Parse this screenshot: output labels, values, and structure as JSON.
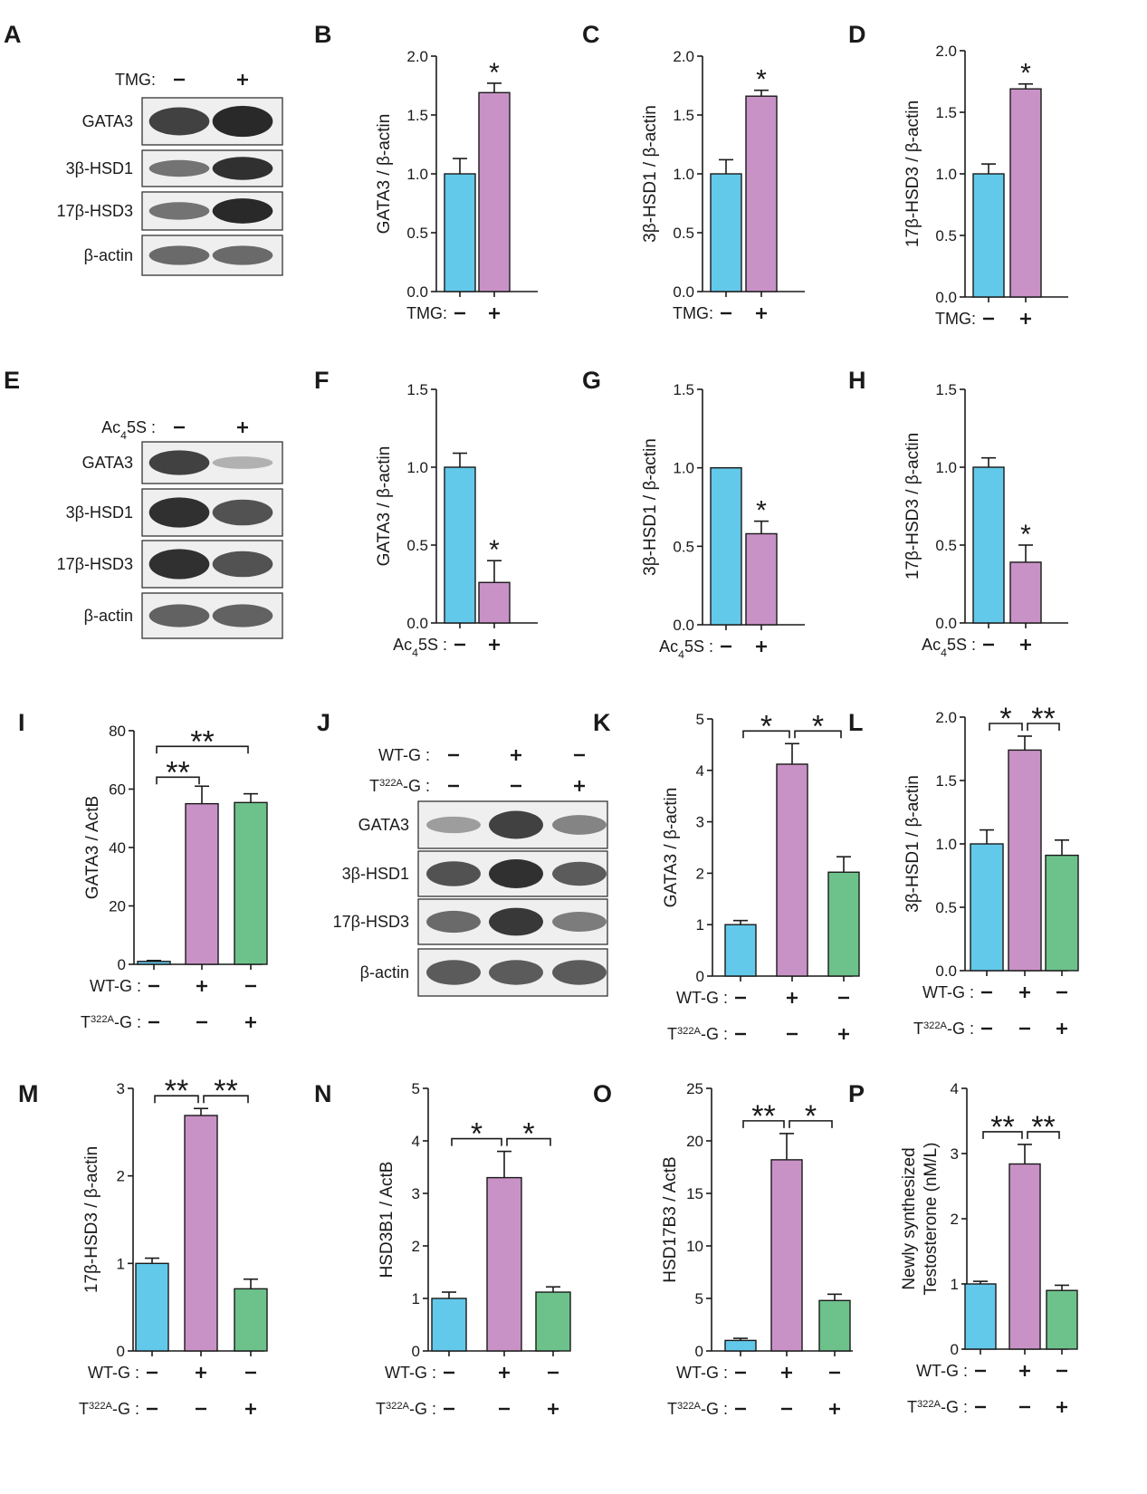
{
  "colors": {
    "cyan": "#63c9ea",
    "pink": "#c992c6",
    "green": "#6dc28b",
    "axis": "#1a1a1a",
    "blot_band": "#1d1d1d"
  },
  "blots": [
    {
      "letter": "A",
      "cond_labels": [
        {
          "text": "TMG:"
        }
      ],
      "cond_signs": [
        [
          "−",
          "+"
        ]
      ],
      "bands": [
        {
          "label": "GATA3",
          "intensity": [
            0.85,
            1.0
          ]
        },
        {
          "label": "3β-HSD1",
          "intensity": [
            0.55,
            0.95
          ]
        },
        {
          "label": "17β-HSD3",
          "intensity": [
            0.55,
            1.0
          ]
        },
        {
          "label": "β-actin",
          "intensity": [
            0.6,
            0.6
          ]
        }
      ]
    },
    {
      "letter": "E",
      "cond_labels": [
        {
          "text": "Ac",
          "sub": "4",
          "rest": "5S :"
        }
      ],
      "cond_signs": [
        [
          "−",
          "+"
        ]
      ],
      "bands": [
        {
          "label": "GATA3",
          "intensity": [
            0.85,
            0.18
          ]
        },
        {
          "label": "3β-HSD1",
          "intensity": [
            0.95,
            0.75
          ]
        },
        {
          "label": "17β-HSD3",
          "intensity": [
            0.95,
            0.75
          ]
        },
        {
          "label": "β-actin",
          "intensity": [
            0.65,
            0.65
          ]
        }
      ]
    },
    {
      "letter": "J",
      "cond_labels": [
        {
          "text": "WT-G :"
        },
        {
          "text": "T",
          "sup": "322A",
          "rest": "-G :"
        }
      ],
      "cond_signs": [
        [
          "−",
          "+",
          "−"
        ],
        [
          "−",
          "−",
          "+"
        ]
      ],
      "bands": [
        {
          "label": "GATA3",
          "intensity": [
            0.3,
            0.85,
            0.45
          ]
        },
        {
          "label": "3β-HSD1",
          "intensity": [
            0.75,
            0.95,
            0.7
          ]
        },
        {
          "label": "17β-HSD3",
          "intensity": [
            0.6,
            0.9,
            0.5
          ]
        },
        {
          "label": "β-actin",
          "intensity": [
            0.7,
            0.7,
            0.7
          ]
        }
      ]
    }
  ],
  "chart_data": [
    {
      "letter": "B",
      "type": "bar",
      "ylabel": "GATA3 / β-actin",
      "ylim": [
        0,
        2
      ],
      "yticks": [
        "0.0",
        "0.5",
        "1.0",
        "1.5",
        "2.0"
      ],
      "cond_labels": [
        {
          "text": "TMG:"
        }
      ],
      "cond_signs": [
        [
          "−",
          "+"
        ]
      ],
      "values": [
        1.0,
        1.69
      ],
      "errors": [
        0.13,
        0.08
      ],
      "bar_colors": [
        "cyan",
        "pink"
      ],
      "marks": [
        {
          "on": 1,
          "text": "*"
        }
      ],
      "brackets": []
    },
    {
      "letter": "C",
      "type": "bar",
      "ylabel": "3β-HSD1 / β-actin",
      "ylim": [
        0,
        2
      ],
      "yticks": [
        "0.0",
        "0.5",
        "1.0",
        "1.5",
        "2.0"
      ],
      "cond_labels": [
        {
          "text": "TMG:"
        }
      ],
      "cond_signs": [
        [
          "−",
          "+"
        ]
      ],
      "values": [
        1.0,
        1.66
      ],
      "errors": [
        0.12,
        0.05
      ],
      "bar_colors": [
        "cyan",
        "pink"
      ],
      "marks": [
        {
          "on": 1,
          "text": "*"
        }
      ],
      "brackets": []
    },
    {
      "letter": "D",
      "type": "bar",
      "ylabel": "17β-HSD3 / β-actin",
      "ylim": [
        0,
        2
      ],
      "yticks": [
        "0.0",
        "0.5",
        "1.0",
        "1.5",
        "2.0"
      ],
      "cond_labels": [
        {
          "text": "TMG:"
        }
      ],
      "cond_signs": [
        [
          "−",
          "+"
        ]
      ],
      "values": [
        1.0,
        1.69
      ],
      "errors": [
        0.08,
        0.04
      ],
      "bar_colors": [
        "cyan",
        "pink"
      ],
      "marks": [
        {
          "on": 1,
          "text": "*"
        }
      ],
      "brackets": []
    },
    {
      "letter": "F",
      "type": "bar",
      "ylabel": "GATA3 / β-actin",
      "ylim": [
        0,
        1.5
      ],
      "yticks": [
        "0.0",
        "0.5",
        "1.0",
        "1.5"
      ],
      "cond_labels": [
        {
          "text": "Ac",
          "sub": "4",
          "rest": "5S :"
        }
      ],
      "cond_signs": [
        [
          "−",
          "+"
        ]
      ],
      "values": [
        1.0,
        0.26
      ],
      "errors": [
        0.09,
        0.14
      ],
      "bar_colors": [
        "cyan",
        "pink"
      ],
      "marks": [
        {
          "on": 1,
          "text": "*"
        }
      ],
      "brackets": []
    },
    {
      "letter": "G",
      "type": "bar",
      "ylabel": "3β-HSD1 / β-actin",
      "ylim": [
        0,
        1.5
      ],
      "yticks": [
        "0.0",
        "0.5",
        "1.0",
        "1.5"
      ],
      "cond_labels": [
        {
          "text": "Ac",
          "sub": "4",
          "rest": "5S :"
        }
      ],
      "cond_signs": [
        [
          "−",
          "+"
        ]
      ],
      "values": [
        1.0,
        0.58
      ],
      "errors": [
        0.0,
        0.08
      ],
      "bar_colors": [
        "cyan",
        "pink"
      ],
      "marks": [
        {
          "on": 1,
          "text": "*"
        }
      ],
      "brackets": []
    },
    {
      "letter": "H",
      "type": "bar",
      "ylabel": "17β-HSD3 / β-actin",
      "ylim": [
        0,
        1.5
      ],
      "yticks": [
        "0.0",
        "0.5",
        "1.0",
        "1.5"
      ],
      "cond_labels": [
        {
          "text": "Ac",
          "sub": "4",
          "rest": "5S :"
        }
      ],
      "cond_signs": [
        [
          "−",
          "+"
        ]
      ],
      "values": [
        1.0,
        0.39
      ],
      "errors": [
        0.06,
        0.11
      ],
      "bar_colors": [
        "cyan",
        "pink"
      ],
      "marks": [
        {
          "on": 1,
          "text": "*"
        }
      ],
      "brackets": []
    },
    {
      "letter": "I",
      "type": "bar",
      "ylabel": "GATA3 / ActB",
      "ylim": [
        0,
        80
      ],
      "yticks": [
        "0",
        "20",
        "40",
        "60",
        "80"
      ],
      "cond_labels": [
        {
          "text": "WT-G :"
        },
        {
          "text": "T",
          "sup": "322A",
          "rest": "-G :"
        }
      ],
      "cond_signs": [
        [
          "−",
          "+",
          "−"
        ],
        [
          "−",
          "−",
          "+"
        ]
      ],
      "values": [
        1.0,
        55.0,
        55.4
      ],
      "errors": [
        0.3,
        6.0,
        3.0
      ],
      "bar_colors": [
        "cyan",
        "pink",
        "green"
      ],
      "marks": [],
      "brackets": [
        {
          "from": 0,
          "to": 1,
          "level": 0,
          "text": "**"
        },
        {
          "from": 0,
          "to": 2,
          "level": 1,
          "text": "**"
        }
      ]
    },
    {
      "letter": "K",
      "type": "bar",
      "ylabel": "GATA3 / β-actin",
      "ylim": [
        0,
        5
      ],
      "yticks": [
        "0",
        "1",
        "2",
        "3",
        "4",
        "5"
      ],
      "cond_labels": [
        {
          "text": "WT-G :"
        },
        {
          "text": "T",
          "sup": "322A",
          "rest": "-G :"
        }
      ],
      "cond_signs": [
        [
          "−",
          "+",
          "−"
        ],
        [
          "−",
          "−",
          "+"
        ]
      ],
      "values": [
        1.0,
        4.12,
        2.02
      ],
      "errors": [
        0.08,
        0.4,
        0.3
      ],
      "bar_colors": [
        "cyan",
        "pink",
        "green"
      ],
      "marks": [],
      "brackets": [
        {
          "from": 0,
          "to": 1,
          "level": 0,
          "text": "*"
        },
        {
          "from": 1,
          "to": 2,
          "level": 0,
          "text": "*"
        }
      ]
    },
    {
      "letter": "L",
      "type": "bar",
      "ylabel": "3β-HSD1 / β-actin",
      "ylim": [
        0,
        2
      ],
      "yticks": [
        "0.0",
        "0.5",
        "1.0",
        "1.5",
        "2.0"
      ],
      "cond_labels": [
        {
          "text": "WT-G :"
        },
        {
          "text": "T",
          "sup": "322A",
          "rest": "-G :"
        }
      ],
      "cond_signs": [
        [
          "−",
          "+",
          "−"
        ],
        [
          "−",
          "−",
          "+"
        ]
      ],
      "values": [
        1.0,
        1.74,
        0.91
      ],
      "errors": [
        0.11,
        0.11,
        0.12
      ],
      "bar_colors": [
        "cyan",
        "pink",
        "green"
      ],
      "marks": [],
      "brackets": [
        {
          "from": 0,
          "to": 1,
          "level": 0,
          "text": "*"
        },
        {
          "from": 1,
          "to": 2,
          "level": 0,
          "text": "**"
        }
      ]
    },
    {
      "letter": "M",
      "type": "bar",
      "ylabel": "17β-HSD3 / β-actin",
      "ylim": [
        0,
        3
      ],
      "yticks": [
        "0",
        "1",
        "2",
        "3"
      ],
      "cond_labels": [
        {
          "text": "WT-G :"
        },
        {
          "text": "T",
          "sup": "322A",
          "rest": "-G :"
        }
      ],
      "cond_signs": [
        [
          "−",
          "+",
          "−"
        ],
        [
          "−",
          "−",
          "+"
        ]
      ],
      "values": [
        1.0,
        2.69,
        0.71
      ],
      "errors": [
        0.06,
        0.08,
        0.11
      ],
      "bar_colors": [
        "cyan",
        "pink",
        "green"
      ],
      "marks": [],
      "brackets": [
        {
          "from": 0,
          "to": 1,
          "level": 0,
          "text": "**"
        },
        {
          "from": 1,
          "to": 2,
          "level": 0,
          "text": "**"
        }
      ]
    },
    {
      "letter": "N",
      "type": "bar",
      "ylabel": "HSD3B1 / ActB",
      "ylim": [
        0,
        5
      ],
      "yticks": [
        "0",
        "1",
        "2",
        "3",
        "4",
        "5"
      ],
      "cond_labels": [
        {
          "text": "WT-G :"
        },
        {
          "text": "T",
          "sup": "322A",
          "rest": "-G :"
        }
      ],
      "cond_signs": [
        [
          "−",
          "+",
          "−"
        ],
        [
          "−",
          "−",
          "+"
        ]
      ],
      "values": [
        1.0,
        3.3,
        1.12
      ],
      "errors": [
        0.12,
        0.5,
        0.1
      ],
      "bar_colors": [
        "cyan",
        "pink",
        "green"
      ],
      "marks": [],
      "brackets": [
        {
          "from": 0,
          "to": 1,
          "level": 0,
          "text": "*"
        },
        {
          "from": 1,
          "to": 2,
          "level": 0,
          "text": "*"
        }
      ]
    },
    {
      "letter": "O",
      "type": "bar",
      "ylabel": "HSD17B3 / ActB",
      "ylim": [
        0,
        25
      ],
      "yticks": [
        "0",
        "5",
        "10",
        "15",
        "20",
        "25"
      ],
      "cond_labels": [
        {
          "text": "WT-G :"
        },
        {
          "text": "T",
          "sup": "322A",
          "rest": "-G :"
        }
      ],
      "cond_signs": [
        [
          "−",
          "+",
          "−"
        ],
        [
          "−",
          "−",
          "+"
        ]
      ],
      "values": [
        1.0,
        18.2,
        4.8
      ],
      "errors": [
        0.2,
        2.5,
        0.6
      ],
      "bar_colors": [
        "cyan",
        "pink",
        "green"
      ],
      "marks": [],
      "brackets": [
        {
          "from": 0,
          "to": 1,
          "level": 0,
          "text": "**"
        },
        {
          "from": 1,
          "to": 2,
          "level": 0,
          "text": "*"
        }
      ]
    },
    {
      "letter": "P",
      "type": "bar",
      "ylabel": [
        "Newly synthesized",
        "Testosterone (nM/L)"
      ],
      "ylim": [
        0,
        4
      ],
      "yticks": [
        "0",
        "1",
        "2",
        "3",
        "4"
      ],
      "cond_labels": [
        {
          "text": "WT-G :"
        },
        {
          "text": "T",
          "sup": "322A",
          "rest": "-G :"
        }
      ],
      "cond_signs": [
        [
          "−",
          "+",
          "−"
        ],
        [
          "−",
          "−",
          "+"
        ]
      ],
      "values": [
        1.0,
        2.84,
        0.9
      ],
      "errors": [
        0.04,
        0.3,
        0.08
      ],
      "bar_colors": [
        "cyan",
        "pink",
        "green"
      ],
      "marks": [],
      "brackets": [
        {
          "from": 0,
          "to": 1,
          "level": 0,
          "text": "**"
        },
        {
          "from": 1,
          "to": 2,
          "level": 0,
          "text": "**"
        }
      ]
    }
  ]
}
